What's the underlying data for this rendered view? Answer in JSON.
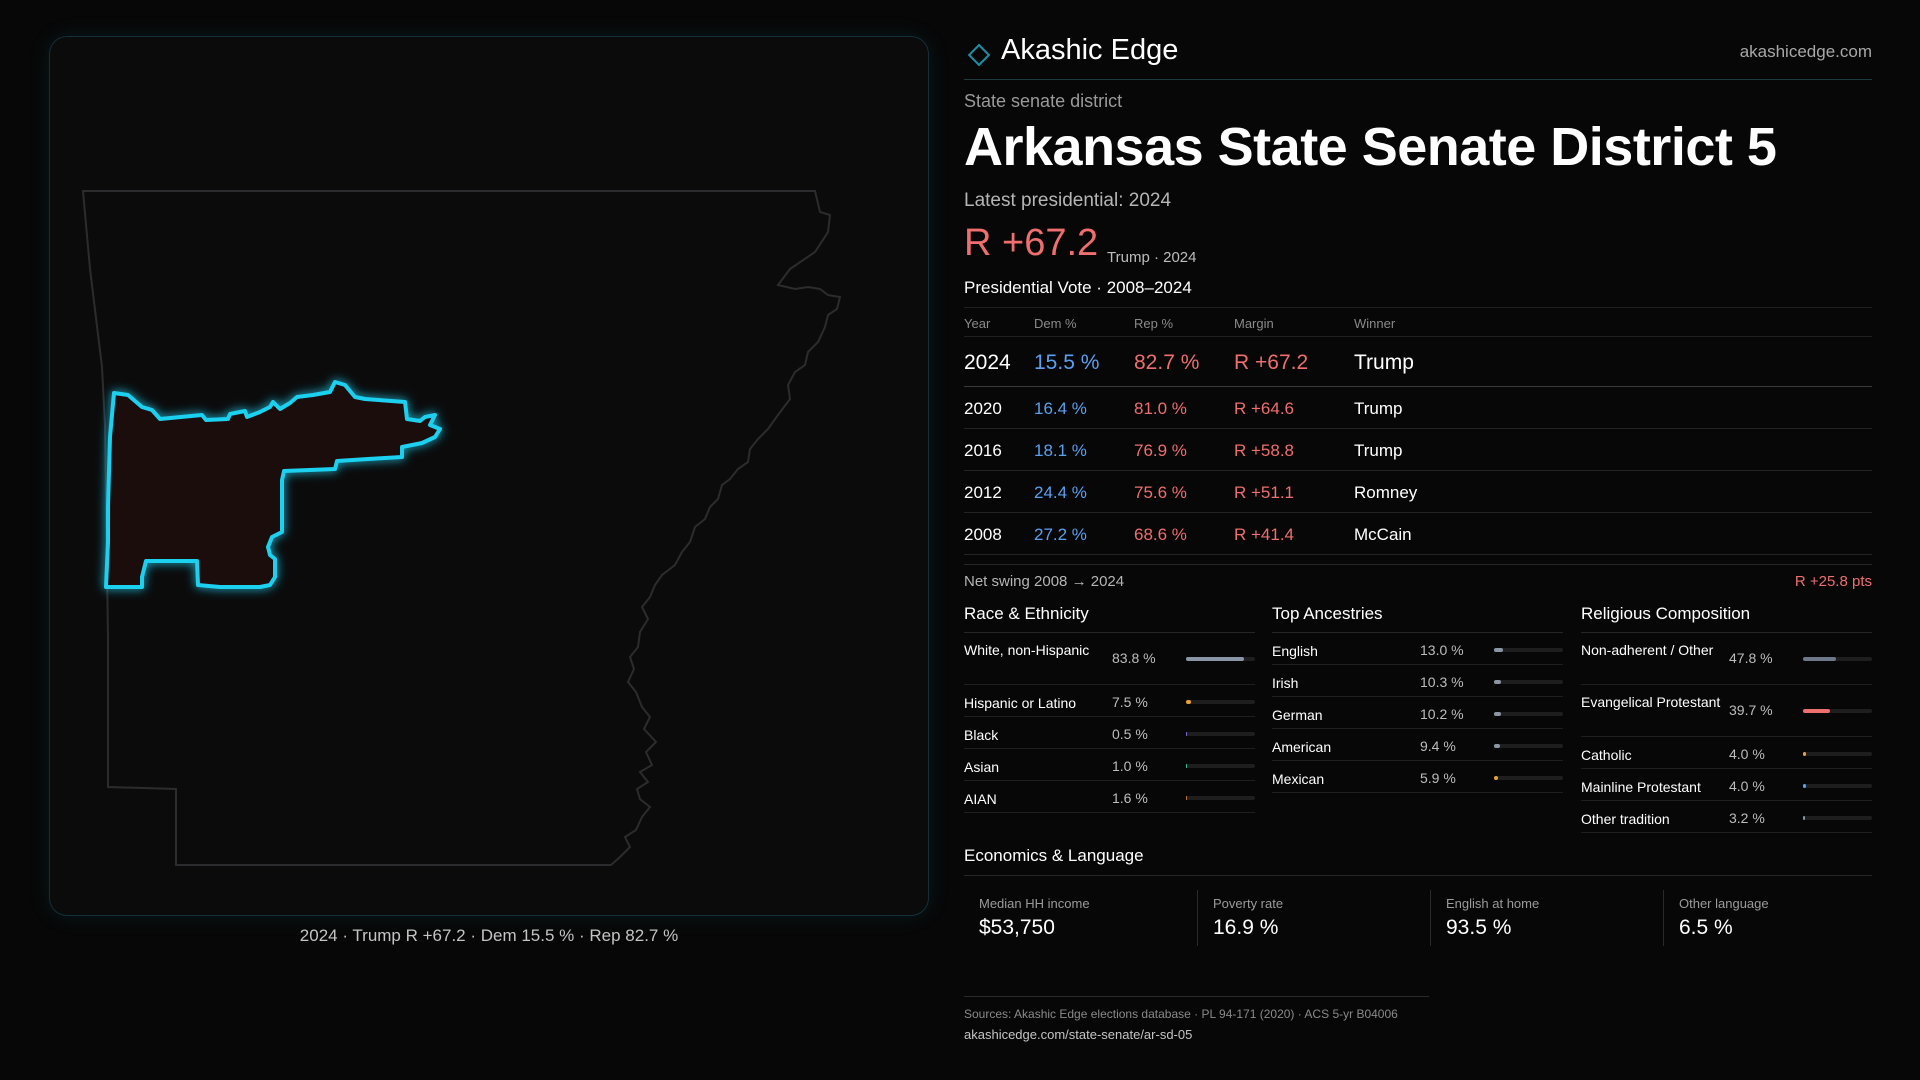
{
  "brand": {
    "name": "Akashic Edge",
    "url": "akashicedge.com"
  },
  "header": {
    "kicker": "State senate district",
    "title": "Arkansas State Senate District 5",
    "latest": "Latest presidential: 2024",
    "margin": "R +67.2",
    "margin_sub": "Trump · 2024"
  },
  "map": {
    "caption": "2024 · Trump R +67.2 · Dem 15.5 % · Rep 82.7 %"
  },
  "presidential_vote": {
    "heading": "Presidential Vote · 2008–2024",
    "columns": [
      "Year",
      "Dem %",
      "Rep %",
      "Margin",
      "Winner"
    ],
    "rows": [
      {
        "year": "2024",
        "dem": "15.5 %",
        "rep": "82.7 %",
        "margin": "R +67.2",
        "winner": "Trump"
      },
      {
        "year": "2020",
        "dem": "16.4 %",
        "rep": "81.0 %",
        "margin": "R +64.6",
        "winner": "Trump"
      },
      {
        "year": "2016",
        "dem": "18.1 %",
        "rep": "76.9 %",
        "margin": "R +58.8",
        "winner": "Trump"
      },
      {
        "year": "2012",
        "dem": "24.4 %",
        "rep": "75.6 %",
        "margin": "R +51.1",
        "winner": "Romney"
      },
      {
        "year": "2008",
        "dem": "27.2 %",
        "rep": "68.6 %",
        "margin": "R +41.4",
        "winner": "McCain"
      }
    ],
    "swing_label": "Net swing 2008 → 2024",
    "swing_value": "R +25.8 pts"
  },
  "race": {
    "title": "Race & Ethnicity",
    "items": [
      {
        "label": "White, non-Hispanic",
        "value": "83.8 %",
        "pct": 83.8,
        "color": "#8a96a6"
      },
      {
        "label": "Hispanic or Latino",
        "value": "7.5 %",
        "pct": 7.5,
        "color": "#e8a13a"
      },
      {
        "label": "Black",
        "value": "0.5 %",
        "pct": 0.5,
        "color": "#7a6ad8"
      },
      {
        "label": "Asian",
        "value": "1.0 %",
        "pct": 1.0,
        "color": "#3fbf8f"
      },
      {
        "label": "AIAN",
        "value": "1.6 %",
        "pct": 1.6,
        "color": "#c8703a"
      }
    ]
  },
  "ancestry": {
    "title": "Top Ancestries",
    "items": [
      {
        "label": "English",
        "value": "13.0 %",
        "pct": 13.0,
        "color": "#8a96a6"
      },
      {
        "label": "Irish",
        "value": "10.3 %",
        "pct": 10.3,
        "color": "#8a96a6"
      },
      {
        "label": "German",
        "value": "10.2 %",
        "pct": 10.2,
        "color": "#8a96a6"
      },
      {
        "label": "American",
        "value": "9.4 %",
        "pct": 9.4,
        "color": "#8a96a6"
      },
      {
        "label": "Mexican",
        "value": "5.9 %",
        "pct": 5.9,
        "color": "#e8a13a"
      }
    ]
  },
  "religion": {
    "title": "Religious Composition",
    "items": [
      {
        "label": "Non-adherent / Other",
        "value": "47.8 %",
        "pct": 47.8,
        "color": "#6f7888"
      },
      {
        "label": "Evangelical Protestant",
        "value": "39.7 %",
        "pct": 39.7,
        "color": "#ef6e6e"
      },
      {
        "label": "Catholic",
        "value": "4.0 %",
        "pct": 4.0,
        "color": "#e8a13a"
      },
      {
        "label": "Mainline Protestant",
        "value": "4.0 %",
        "pct": 4.0,
        "color": "#5aa0f0"
      },
      {
        "label": "Other tradition",
        "value": "3.2 %",
        "pct": 3.2,
        "color": "#8a96a6"
      }
    ]
  },
  "economics": {
    "title": "Economics & Language",
    "boxes": [
      {
        "label": "Median HH income",
        "value": "$53,750"
      },
      {
        "label": "Poverty rate",
        "value": "16.9 %"
      },
      {
        "label": "English at home",
        "value": "93.5 %"
      },
      {
        "label": "Other language",
        "value": "6.5 %"
      }
    ]
  },
  "sources": {
    "line": "Sources: Akashic Edge elections database · PL 94-171 (2020) · ACS 5-yr B04006",
    "url": "akashicedge.com/state-senate/ar-sd-05"
  },
  "colors": {
    "dem": "#5aa0f0",
    "rep": "#ef6e6e",
    "district_outline": "#1ed0f0",
    "district_fill": "#1a0d0e"
  }
}
